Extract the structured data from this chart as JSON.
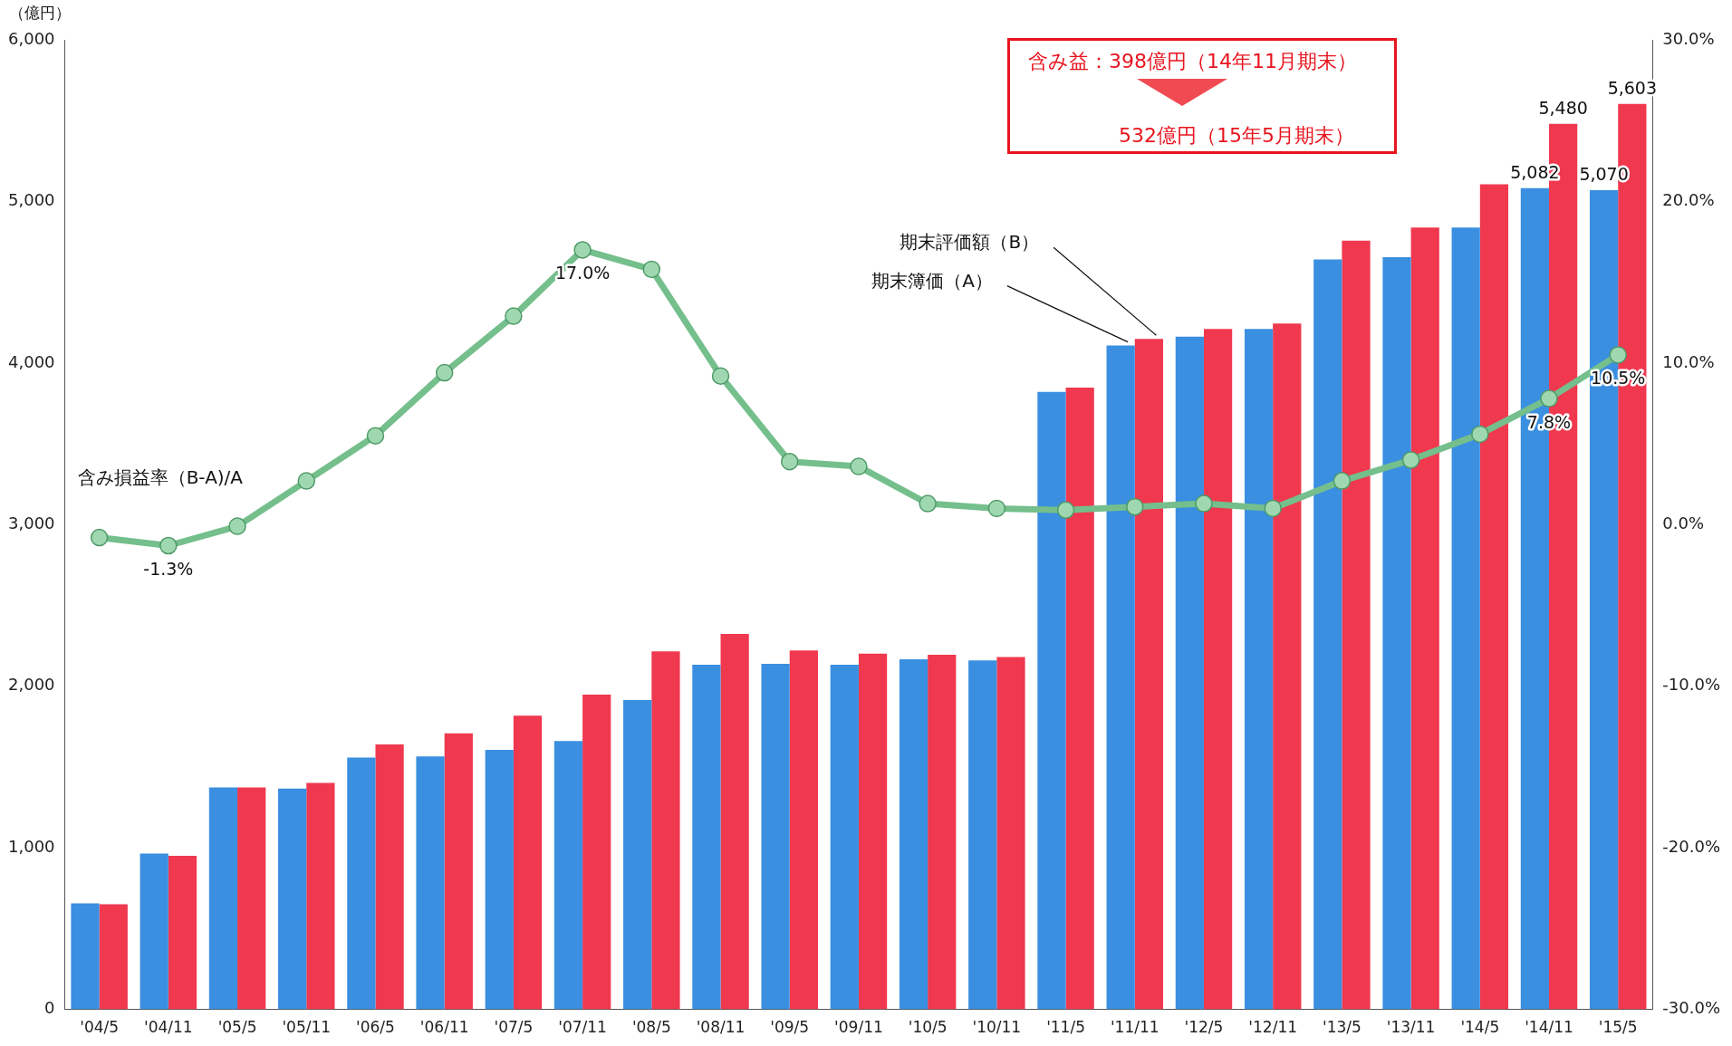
{
  "chart_data": {
    "type": "bar",
    "ylabel": "（億円）",
    "categories": [
      "'04/5",
      "'04/11",
      "'05/5",
      "'05/11",
      "'06/5",
      "'06/11",
      "'07/5",
      "'07/11",
      "'08/5",
      "'08/11",
      "'09/5",
      "'09/11",
      "'10/5",
      "'10/11",
      "'11/5",
      "'11/11",
      "'12/5",
      "'12/11",
      "'13/5",
      "'13/11",
      "'14/5",
      "'14/11",
      "'15/5"
    ],
    "series": [
      {
        "name": "期末簿価（A）",
        "color": "#3a8fe0",
        "values": [
          656,
          964,
          1374,
          1367,
          1558,
          1565,
          1606,
          1661,
          1914,
          2133,
          2139,
          2133,
          2167,
          2160,
          3821,
          4108,
          4163,
          4211,
          4641,
          4655,
          4839,
          5082,
          5070
        ],
        "value_labels": [
          null,
          null,
          null,
          null,
          null,
          null,
          null,
          null,
          null,
          null,
          null,
          null,
          null,
          null,
          null,
          null,
          null,
          null,
          null,
          null,
          null,
          "5,082",
          "5,070"
        ]
      },
      {
        "name": "期末評価額（B）",
        "color": "#f0384f",
        "values": [
          650,
          950,
          1374,
          1401,
          1640,
          1709,
          1818,
          1948,
          2215,
          2324,
          2221,
          2201,
          2194,
          2180,
          3848,
          4149,
          4211,
          4245,
          4757,
          4839,
          5106,
          5480,
          5603
        ],
        "value_labels": [
          null,
          null,
          null,
          null,
          null,
          null,
          null,
          null,
          null,
          null,
          null,
          null,
          null,
          null,
          null,
          null,
          null,
          null,
          null,
          null,
          null,
          "5,480",
          "5,603"
        ]
      },
      {
        "name": "含み損益率（B-A)/A",
        "type": "line",
        "axis": "y2",
        "color": "#74bf8c",
        "marker": "circle",
        "values": [
          -0.8,
          -1.3,
          -0.1,
          2.7,
          5.5,
          9.4,
          12.9,
          17.0,
          15.8,
          9.2,
          3.9,
          3.6,
          1.3,
          1.0,
          0.9,
          1.1,
          1.3,
          1.0,
          2.7,
          4.0,
          5.6,
          7.8,
          10.5
        ],
        "value_labels": [
          null,
          "-1.3%",
          null,
          null,
          null,
          null,
          null,
          "17.0%",
          null,
          null,
          null,
          null,
          null,
          null,
          null,
          null,
          null,
          null,
          null,
          null,
          null,
          "7.8%",
          "10.5%"
        ]
      }
    ],
    "ylim": [
      0,
      6000
    ],
    "yticks": [
      {
        "value": 0,
        "label": "0"
      },
      {
        "value": 1000,
        "label": "1,000"
      },
      {
        "value": 2000,
        "label": "2,000"
      },
      {
        "value": 3000,
        "label": "3,000"
      },
      {
        "value": 4000,
        "label": "4,000"
      },
      {
        "value": 5000,
        "label": "5,000"
      },
      {
        "value": 6000,
        "label": "6,000"
      }
    ],
    "y2lim": [
      -30,
      30
    ],
    "y2ticks": [
      {
        "value": -30,
        "label": "-30.0%"
      },
      {
        "value": -20,
        "label": "-20.0%"
      },
      {
        "value": -10,
        "label": "-10.0%"
      },
      {
        "value": 0,
        "label": "0.0%"
      },
      {
        "value": 10,
        "label": "10.0%"
      },
      {
        "value": 20,
        "label": "20.0%"
      },
      {
        "value": 30,
        "label": "30.0%"
      }
    ],
    "annotations": [
      "含み益：398億円（14年11月期末）",
      "532億円（15年5月期末）"
    ],
    "grid": false,
    "legend": false
  }
}
